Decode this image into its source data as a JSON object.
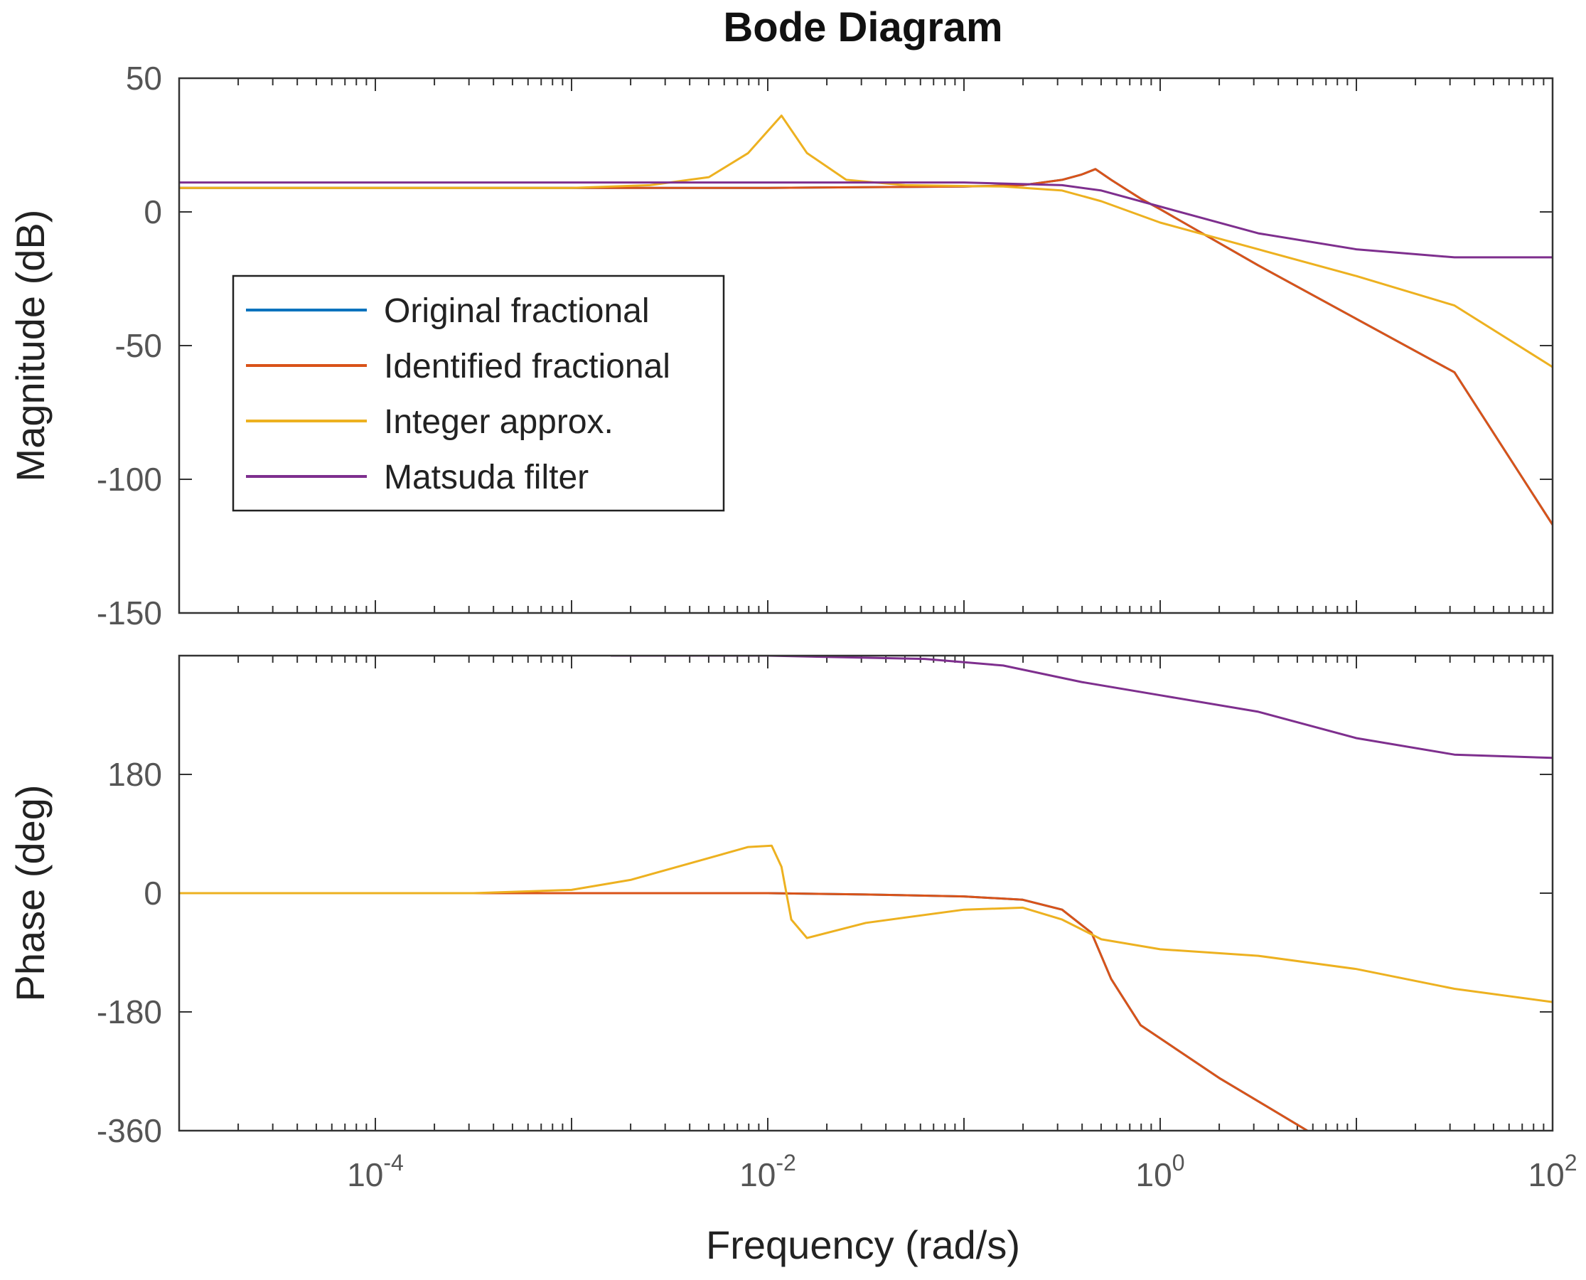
{
  "chart_data": {
    "type": "line",
    "title": "Bode Diagram",
    "xlabel": "Frequency  (rad/s)",
    "xscale": "log",
    "xlim_exp": [
      -5,
      2
    ],
    "xtick_exponents": [
      -4,
      -2,
      0,
      2
    ],
    "legend_position": "inside upper-left of magnitude panel",
    "series_styles": [
      {
        "name": "Original fractional",
        "color": "#0072BD"
      },
      {
        "name": "Identified fractional",
        "color": "#D95319"
      },
      {
        "name": "Integer approx.",
        "color": "#EDB120"
      },
      {
        "name": "Matsuda filter",
        "color": "#7E2F8E"
      }
    ],
    "panels": [
      {
        "id": "magnitude",
        "ylabel": "Magnitude (dB)",
        "ylim": [
          -150,
          50
        ],
        "yticks": [
          50,
          0,
          -50,
          -100,
          -150
        ],
        "series": [
          {
            "name": "Original fractional",
            "points": [
              [
                -5,
                9
              ],
              [
                -4,
                9
              ],
              [
                -3,
                9
              ],
              [
                -2,
                9
              ],
              [
                -1,
                9.5
              ],
              [
                -0.7,
                10
              ],
              [
                -0.5,
                12
              ],
              [
                -0.4,
                14
              ],
              [
                -0.33,
                16
              ],
              [
                -0.25,
                12
              ],
              [
                -0.1,
                5
              ],
              [
                0,
                1
              ],
              [
                0.5,
                -20
              ],
              [
                1,
                -40
              ],
              [
                1.5,
                -60
              ],
              [
                2,
                -117
              ]
            ]
          },
          {
            "name": "Identified fractional",
            "points": [
              [
                -5,
                9
              ],
              [
                -4,
                9
              ],
              [
                -3,
                9
              ],
              [
                -2,
                9
              ],
              [
                -1,
                9.5
              ],
              [
                -0.7,
                10
              ],
              [
                -0.5,
                12
              ],
              [
                -0.4,
                14
              ],
              [
                -0.33,
                16
              ],
              [
                -0.25,
                12
              ],
              [
                -0.1,
                5
              ],
              [
                0,
                1
              ],
              [
                0.5,
                -20
              ],
              [
                1,
                -40
              ],
              [
                1.5,
                -60
              ],
              [
                2,
                -117
              ]
            ]
          },
          {
            "name": "Integer approx.",
            "points": [
              [
                -5,
                9
              ],
              [
                -4,
                9
              ],
              [
                -3,
                9
              ],
              [
                -2.6,
                10
              ],
              [
                -2.3,
                13
              ],
              [
                -2.1,
                22
              ],
              [
                -1.93,
                36
              ],
              [
                -1.8,
                22
              ],
              [
                -1.6,
                12
              ],
              [
                -1.3,
                10
              ],
              [
                -0.8,
                9.5
              ],
              [
                -0.5,
                8
              ],
              [
                -0.3,
                4
              ],
              [
                0,
                -4
              ],
              [
                0.5,
                -14
              ],
              [
                1,
                -24
              ],
              [
                1.5,
                -35
              ],
              [
                2,
                -58
              ]
            ]
          },
          {
            "name": "Matsuda filter",
            "points": [
              [
                -5,
                11
              ],
              [
                -4,
                11
              ],
              [
                -3,
                11
              ],
              [
                -2,
                11
              ],
              [
                -1,
                11
              ],
              [
                -0.5,
                10
              ],
              [
                -0.3,
                8
              ],
              [
                0,
                2
              ],
              [
                0.5,
                -8
              ],
              [
                1,
                -14
              ],
              [
                1.5,
                -17
              ],
              [
                2,
                -17
              ]
            ]
          }
        ]
      },
      {
        "id": "phase",
        "ylabel": "Phase (deg)",
        "ylim": [
          -360,
          360
        ],
        "yticks": [
          180,
          0,
          -180,
          -360
        ],
        "series": [
          {
            "name": "Original fractional",
            "points": [
              [
                -5,
                0
              ],
              [
                -3,
                0
              ],
              [
                -2,
                0
              ],
              [
                -1.5,
                -2
              ],
              [
                -1,
                -5
              ],
              [
                -0.7,
                -10
              ],
              [
                -0.5,
                -25
              ],
              [
                -0.35,
                -60
              ],
              [
                -0.25,
                -130
              ],
              [
                -0.1,
                -200
              ],
              [
                0.3,
                -280
              ],
              [
                0.75,
                -360
              ]
            ]
          },
          {
            "name": "Identified fractional",
            "points": [
              [
                -5,
                0
              ],
              [
                -3,
                0
              ],
              [
                -2,
                0
              ],
              [
                -1.5,
                -2
              ],
              [
                -1,
                -5
              ],
              [
                -0.7,
                -10
              ],
              [
                -0.5,
                -25
              ],
              [
                -0.35,
                -60
              ],
              [
                -0.25,
                -130
              ],
              [
                -0.1,
                -200
              ],
              [
                0.3,
                -280
              ],
              [
                0.75,
                -360
              ]
            ]
          },
          {
            "name": "Integer approx.",
            "points": [
              [
                -5,
                0
              ],
              [
                -3.5,
                0
              ],
              [
                -3,
                5
              ],
              [
                -2.7,
                20
              ],
              [
                -2.4,
                45
              ],
              [
                -2.1,
                70
              ],
              [
                -1.98,
                72
              ],
              [
                -1.93,
                40
              ],
              [
                -1.88,
                -40
              ],
              [
                -1.8,
                -68
              ],
              [
                -1.5,
                -45
              ],
              [
                -1,
                -25
              ],
              [
                -0.7,
                -22
              ],
              [
                -0.5,
                -40
              ],
              [
                -0.3,
                -70
              ],
              [
                0,
                -85
              ],
              [
                0.5,
                -95
              ],
              [
                1,
                -115
              ],
              [
                1.5,
                -145
              ],
              [
                2,
                -165
              ]
            ]
          },
          {
            "name": "Matsuda filter",
            "points": [
              [
                -2.8,
                360
              ],
              [
                -2,
                360
              ],
              [
                -1.2,
                355
              ],
              [
                -0.8,
                345
              ],
              [
                -0.4,
                320
              ],
              [
                0,
                300
              ],
              [
                0.5,
                275
              ],
              [
                1,
                235
              ],
              [
                1.5,
                210
              ],
              [
                2,
                205
              ]
            ]
          }
        ]
      }
    ]
  }
}
